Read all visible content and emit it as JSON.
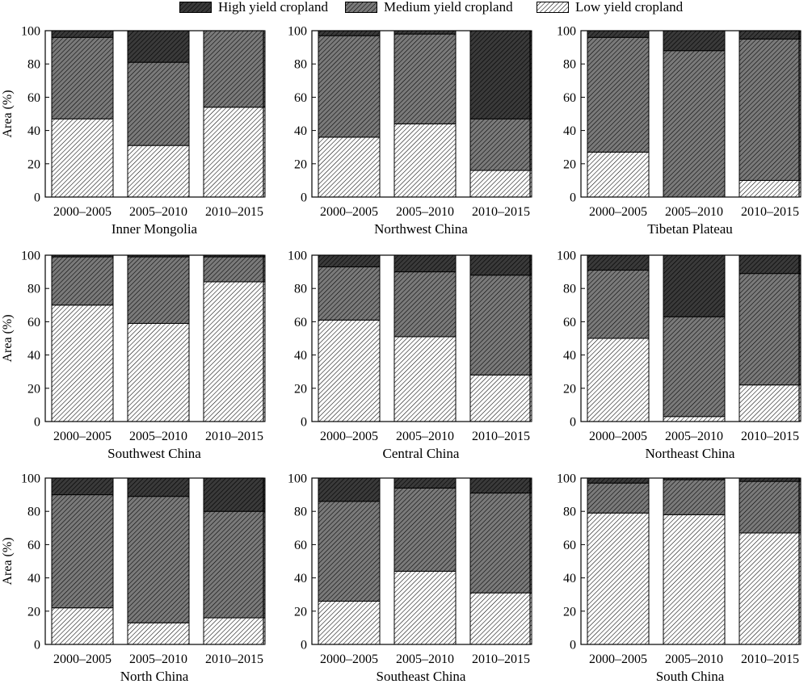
{
  "legend": {
    "items": [
      {
        "label": "High yield cropland",
        "pattern": "high"
      },
      {
        "label": "Medium yield cropland",
        "pattern": "medium"
      },
      {
        "label": "Low yield cropland",
        "pattern": "low"
      }
    ]
  },
  "colors": {
    "high_fill": "#3a3a3a",
    "medium_fill": "#6e6e6e",
    "low_fill": "#ffffff",
    "hatch": "#000000"
  },
  "chart_data": [
    {
      "type": "bar",
      "stacked": true,
      "title": "Inner Mongolia",
      "ylabel": "Area (%)",
      "ylim": [
        0,
        100
      ],
      "yticks": [
        0,
        20,
        40,
        60,
        80,
        100
      ],
      "categories": [
        "2000–2005",
        "2005–2010",
        "2010–2015"
      ],
      "series": [
        {
          "name": "Low yield cropland",
          "values": [
            47,
            31,
            54
          ]
        },
        {
          "name": "Medium yield cropland",
          "values": [
            49,
            50,
            46
          ]
        },
        {
          "name": "High yield cropland",
          "values": [
            4,
            19,
            0
          ]
        }
      ]
    },
    {
      "type": "bar",
      "stacked": true,
      "title": "Northwest China",
      "ylabel": "",
      "ylim": [
        0,
        100
      ],
      "yticks": [
        0,
        20,
        40,
        60,
        80,
        100
      ],
      "categories": [
        "2000–2005",
        "2005–2010",
        "2010–2015"
      ],
      "series": [
        {
          "name": "Low yield cropland",
          "values": [
            36,
            44,
            16
          ]
        },
        {
          "name": "Medium yield cropland",
          "values": [
            61,
            54,
            31
          ]
        },
        {
          "name": "High yield cropland",
          "values": [
            3,
            2,
            53
          ]
        }
      ]
    },
    {
      "type": "bar",
      "stacked": true,
      "title": "Tibetan Plateau",
      "ylabel": "",
      "ylim": [
        0,
        100
      ],
      "yticks": [
        0,
        20,
        40,
        60,
        80,
        100
      ],
      "categories": [
        "2000–2005",
        "2005–2010",
        "2010–2015"
      ],
      "series": [
        {
          "name": "Low yield cropland",
          "values": [
            27,
            0,
            10
          ]
        },
        {
          "name": "Medium yield cropland",
          "values": [
            69,
            88,
            85
          ]
        },
        {
          "name": "High yield cropland",
          "values": [
            4,
            12,
            5
          ]
        }
      ]
    },
    {
      "type": "bar",
      "stacked": true,
      "title": "Southwest China",
      "ylabel": "Area (%)",
      "ylim": [
        0,
        100
      ],
      "yticks": [
        0,
        20,
        40,
        60,
        80,
        100
      ],
      "categories": [
        "2000–2005",
        "2005–2010",
        "2010–2015"
      ],
      "series": [
        {
          "name": "Low yield cropland",
          "values": [
            70,
            59,
            84
          ]
        },
        {
          "name": "Medium yield cropland",
          "values": [
            29,
            40,
            15
          ]
        },
        {
          "name": "High yield cropland",
          "values": [
            1,
            1,
            1
          ]
        }
      ]
    },
    {
      "type": "bar",
      "stacked": true,
      "title": "Central China",
      "ylabel": "",
      "ylim": [
        0,
        100
      ],
      "yticks": [
        0,
        20,
        40,
        60,
        80,
        100
      ],
      "categories": [
        "2000–2005",
        "2005–2010",
        "2010–2015"
      ],
      "series": [
        {
          "name": "Low yield cropland",
          "values": [
            61,
            51,
            28
          ]
        },
        {
          "name": "Medium yield cropland",
          "values": [
            32,
            39,
            60
          ]
        },
        {
          "name": "High yield cropland",
          "values": [
            7,
            10,
            12
          ]
        }
      ]
    },
    {
      "type": "bar",
      "stacked": true,
      "title": "Northeast China",
      "ylabel": "",
      "ylim": [
        0,
        100
      ],
      "yticks": [
        0,
        20,
        40,
        60,
        80,
        100
      ],
      "categories": [
        "2000–2005",
        "2005–2010",
        "2010–2015"
      ],
      "series": [
        {
          "name": "Low yield cropland",
          "values": [
            50,
            3,
            22
          ]
        },
        {
          "name": "Medium yield cropland",
          "values": [
            41,
            60,
            67
          ]
        },
        {
          "name": "High yield cropland",
          "values": [
            9,
            37,
            11
          ]
        }
      ]
    },
    {
      "type": "bar",
      "stacked": true,
      "title": "North China",
      "ylabel": "Area (%)",
      "ylim": [
        0,
        100
      ],
      "yticks": [
        0,
        20,
        40,
        60,
        80,
        100
      ],
      "categories": [
        "2000–2005",
        "2005–2010",
        "2010–2015"
      ],
      "series": [
        {
          "name": "Low yield cropland",
          "values": [
            22,
            13,
            16
          ]
        },
        {
          "name": "Medium yield cropland",
          "values": [
            68,
            76,
            64
          ]
        },
        {
          "name": "High yield cropland",
          "values": [
            10,
            11,
            20
          ]
        }
      ]
    },
    {
      "type": "bar",
      "stacked": true,
      "title": "Southeast China",
      "ylabel": "",
      "ylim": [
        0,
        100
      ],
      "yticks": [
        0,
        20,
        40,
        60,
        80,
        100
      ],
      "categories": [
        "2000–2005",
        "2005–2010",
        "2010–2015"
      ],
      "series": [
        {
          "name": "Low yield cropland",
          "values": [
            26,
            44,
            31
          ]
        },
        {
          "name": "Medium yield cropland",
          "values": [
            60,
            50,
            60
          ]
        },
        {
          "name": "High yield cropland",
          "values": [
            14,
            6,
            9
          ]
        }
      ]
    },
    {
      "type": "bar",
      "stacked": true,
      "title": "South China",
      "ylabel": "",
      "ylim": [
        0,
        100
      ],
      "yticks": [
        0,
        20,
        40,
        60,
        80,
        100
      ],
      "categories": [
        "2000–2005",
        "2005–2010",
        "2010–2015"
      ],
      "series": [
        {
          "name": "Low yield cropland",
          "values": [
            79,
            78,
            67
          ]
        },
        {
          "name": "Medium yield cropland",
          "values": [
            18,
            21,
            31
          ]
        },
        {
          "name": "High yield cropland",
          "values": [
            3,
            1,
            2
          ]
        }
      ]
    }
  ]
}
